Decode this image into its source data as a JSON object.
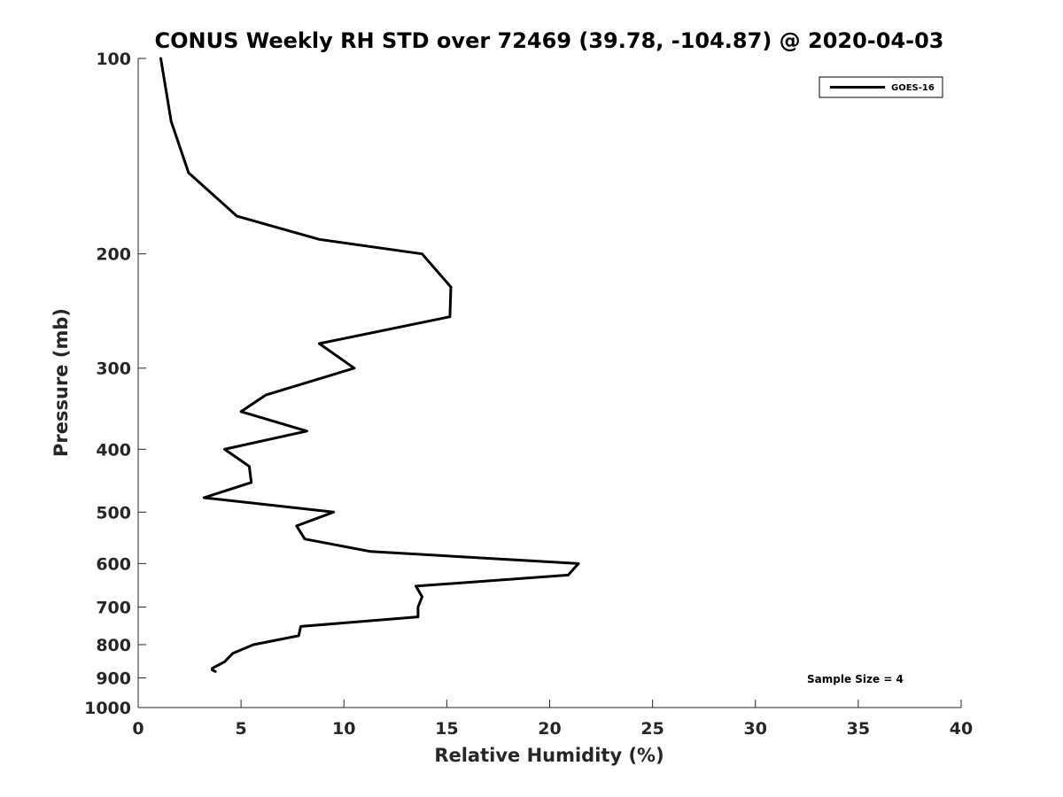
{
  "chart_data": {
    "type": "line",
    "title": "CONUS Weekly RH STD over 72469 (39.78, -104.87) @ 2020-04-03",
    "xlabel": "Relative Humidity (%)",
    "ylabel": "Pressure (mb)",
    "xlim": [
      0,
      40
    ],
    "ylim": [
      100,
      1000
    ],
    "yscale": "log",
    "y_reversed": true,
    "x_ticks": [
      0,
      5,
      10,
      15,
      20,
      25,
      30,
      35,
      40
    ],
    "y_ticks": [
      100,
      200,
      300,
      400,
      500,
      600,
      700,
      800,
      900,
      1000
    ],
    "grid": false,
    "legend_position": "top-right",
    "annotation": "Sample Size = 4",
    "series": [
      {
        "name": "GOES-16",
        "color": "#000000",
        "x": [
          1.1,
          1.6,
          2.45,
          4.8,
          8.8,
          13.8,
          15.2,
          15.15,
          8.8,
          10.5,
          6.2,
          5.0,
          8.2,
          4.2,
          5.4,
          5.5,
          3.2,
          9.5,
          7.7,
          8.1,
          11.3,
          21.4,
          20.9,
          13.5,
          13.8,
          13.6,
          13.6,
          7.9,
          7.8,
          5.6,
          4.6,
          4.2,
          3.9,
          3.6,
          3.6,
          3.75
        ],
        "y": [
          100,
          125,
          150,
          175,
          190,
          200,
          225,
          250,
          275,
          300,
          330,
          350,
          375,
          400,
          425,
          450,
          475,
          500,
          525,
          550,
          575,
          600,
          625,
          650,
          675,
          700,
          725,
          750,
          775,
          800,
          825,
          850,
          860,
          870,
          875,
          880
        ]
      }
    ]
  }
}
